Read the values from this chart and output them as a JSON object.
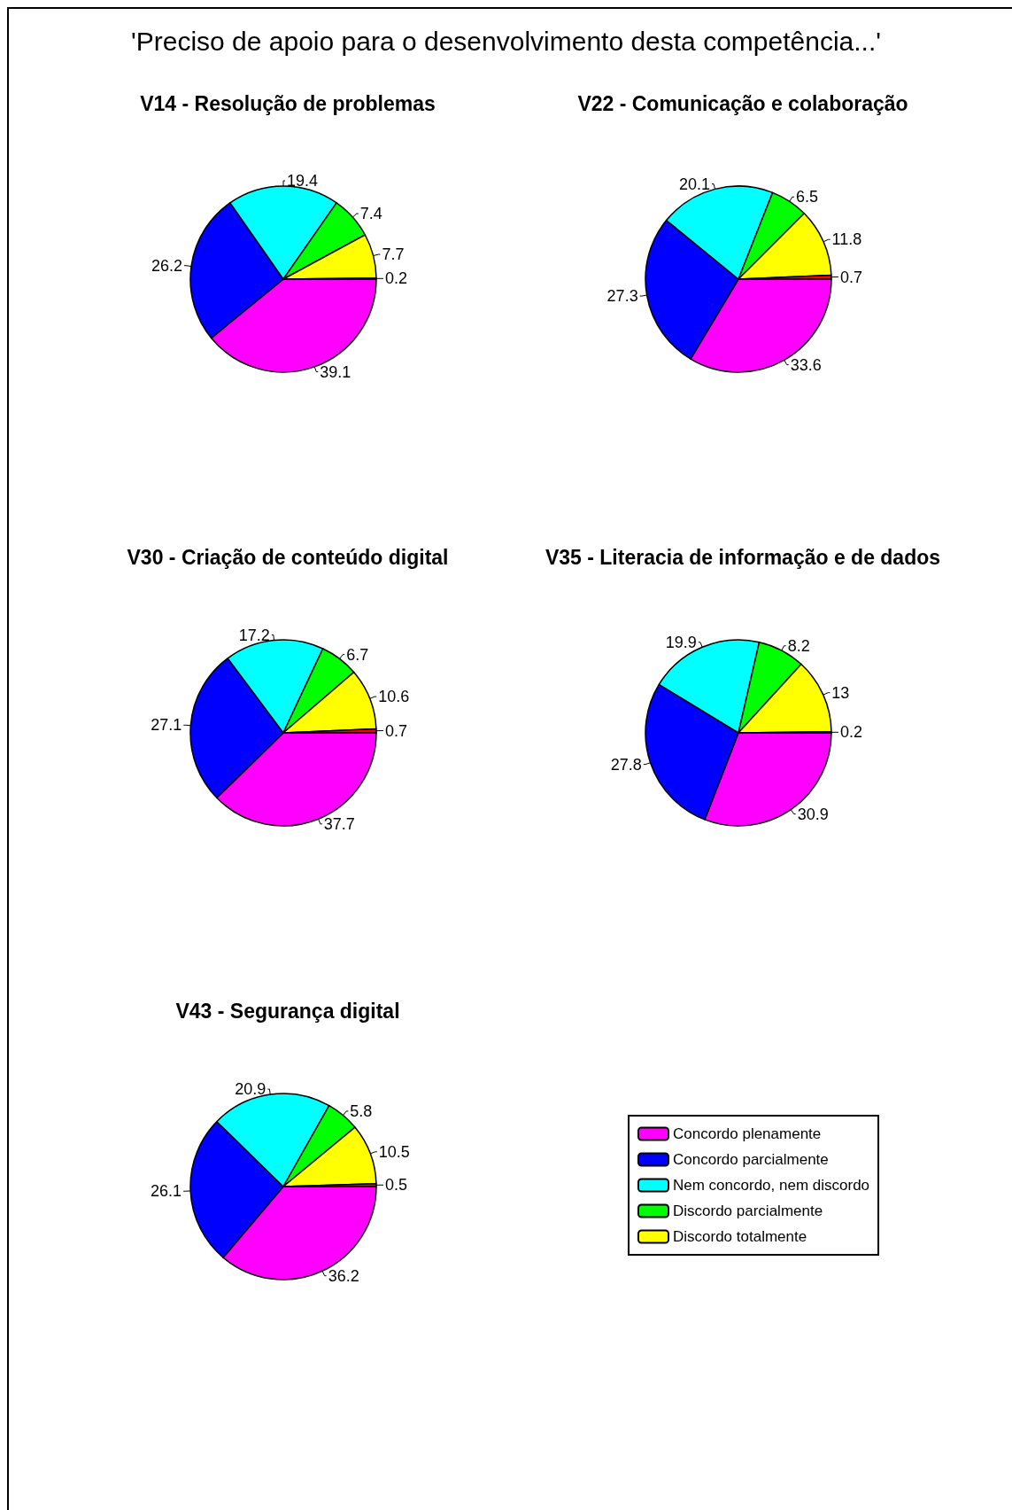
{
  "chart_data": [
    {
      "type": "pie",
      "title": "V14 - Resolução de problemas",
      "annotations": [
        "'Preciso de apoio para o desenvolvimento desta competência...'"
      ],
      "categories": [
        null,
        null,
        null,
        null,
        null,
        null
      ],
      "values": [
        39.1,
        26.2,
        19.4,
        7.4,
        7.7,
        0.2
      ],
      "colors": [
        "#ff00ff",
        "#0000ff",
        "#00ffff",
        "#00ff00",
        "#ffff00",
        "#ff0000"
      ],
      "data_labels": true
    },
    {
      "type": "pie",
      "title": "V22 - Comunicação e colaboração",
      "categories": [
        null,
        null,
        null,
        null,
        null,
        null
      ],
      "values": [
        33.6,
        27.3,
        20.1,
        6.5,
        11.8,
        0.7
      ],
      "colors": [
        "#ff00ff",
        "#0000ff",
        "#00ffff",
        "#00ff00",
        "#ffff00",
        "#ff0000"
      ],
      "data_labels": true
    },
    {
      "type": "pie",
      "title": "V30 - Criação de conteúdo digital",
      "categories": [
        null,
        null,
        null,
        null,
        null,
        null
      ],
      "values": [
        37.7,
        27.1,
        17.2,
        6.7,
        10.6,
        0.7
      ],
      "colors": [
        "#ff00ff",
        "#0000ff",
        "#00ffff",
        "#00ff00",
        "#ffff00",
        "#ff0000"
      ],
      "data_labels": true
    },
    {
      "type": "pie",
      "title": "V35 - Literacia de informação e de dados",
      "categories": [
        null,
        null,
        null,
        null,
        null,
        null
      ],
      "values": [
        30.9,
        27.8,
        19.9,
        8.2,
        13,
        0.2
      ],
      "colors": [
        "#ff00ff",
        "#0000ff",
        "#00ffff",
        "#00ff00",
        "#ffff00",
        "#ff0000"
      ],
      "data_labels": true
    },
    {
      "type": "pie",
      "title": "V43 - Segurança digital",
      "categories": [
        "Concordo plenamente",
        "Concordo parcialmente",
        "Nem concordo, nem discordo",
        "Discordo parcialmente",
        "Discordo totalmente",
        null
      ],
      "values": [
        36.2,
        26.1,
        20.9,
        5.8,
        10.5,
        0.5
      ],
      "colors": [
        "#ff00ff",
        "#0000ff",
        "#00ffff",
        "#00ff00",
        "#ffff00",
        "#ff0000"
      ],
      "data_labels": true,
      "legend": "right"
    }
  ]
}
